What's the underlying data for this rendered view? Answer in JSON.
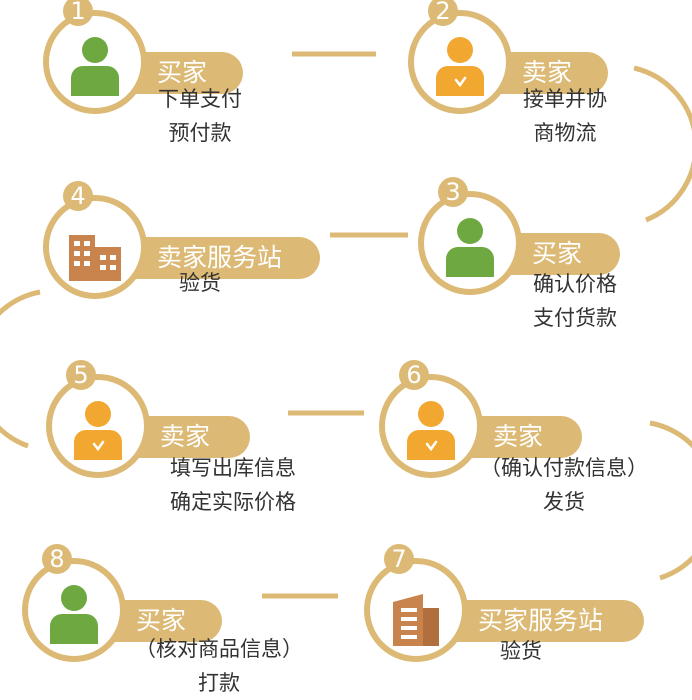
{
  "steps": [
    {
      "number": "1",
      "role": "买家",
      "lines": [
        "下单支付",
        "预付款"
      ],
      "icon": "green-user-icon"
    },
    {
      "number": "2",
      "role": "卖家",
      "lines": [
        "接单并协",
        "商物流"
      ],
      "icon": "orange-user-icon"
    },
    {
      "number": "3",
      "role": "买家",
      "lines": [
        "确认价格",
        "支付货款"
      ],
      "icon": "green-user-icon"
    },
    {
      "number": "4",
      "role": "卖家服务站",
      "lines": [
        "验货"
      ],
      "icon": "building-icon"
    },
    {
      "number": "5",
      "role": "卖家",
      "lines": [
        "填写出库信息",
        "确定实际价格"
      ],
      "icon": "orange-user-icon"
    },
    {
      "number": "6",
      "role": "卖家",
      "lines": [
        "（确认付款信息）",
        "发货"
      ],
      "icon": "orange-user-icon"
    },
    {
      "number": "7",
      "role": "买家服务站",
      "lines": [
        "验货"
      ],
      "icon": "building-icon"
    },
    {
      "number": "8",
      "role": "买家",
      "lines": [
        "（核对商品信息）",
        "打款"
      ],
      "icon": "green-user-icon"
    }
  ],
  "colors": {
    "accent": "#dcb974",
    "buyer_green": "#6ea840",
    "seller_orange": "#f2a830",
    "building_brown": "#c9834c",
    "text": "#333333"
  }
}
